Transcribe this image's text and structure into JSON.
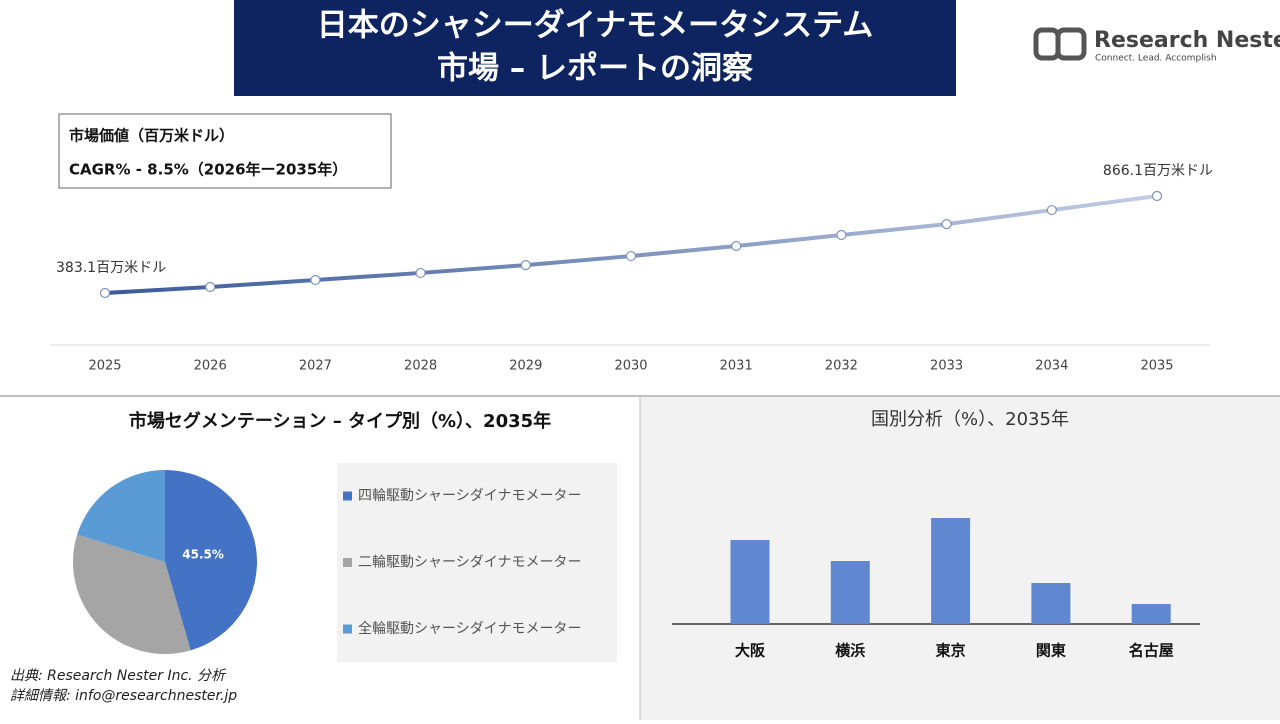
{
  "header": {
    "title_lines": [
      "日本のシャシーダイナモメータシステム",
      "市場 – レポートの洞察"
    ],
    "logo": {
      "name": "Research Nester",
      "tagline": "Connect. Lead. Accomplish"
    }
  },
  "chart_data": [
    {
      "type": "line",
      "annotations": [
        "市場価値（百万米ドル）",
        "CAGR% - 8.5%（2026年ー2035年）"
      ],
      "x": [
        "2025",
        "2026",
        "2027",
        "2028",
        "2029",
        "2030",
        "2031",
        "2032",
        "2033",
        "2034",
        "2035"
      ],
      "values": [
        383.1,
        413,
        448,
        483,
        522,
        567,
        617,
        672,
        726,
        796,
        866.1
      ],
      "value_labels": [
        "383.1百万米ドル",
        null,
        null,
        null,
        null,
        null,
        null,
        null,
        null,
        null,
        "866.1百万米ドル"
      ],
      "color": "#3d5e9e"
    },
    {
      "type": "pie",
      "title": "市場セグメンテーション – タイプ別（%）、2035年",
      "categories": [
        "四輪駆動シャーシダイナモメーター",
        "二輪駆動シャーシダイナモメーター",
        "全輪駆動シャーシダイナモメーター"
      ],
      "values": [
        45.5,
        34.3,
        20.2
      ],
      "value_labels": [
        "45.5%",
        null,
        null
      ],
      "colors": [
        "#4472c4",
        "#a5a5a5",
        "#5b9bd5"
      ]
    },
    {
      "type": "bar",
      "title": "国別分析（%）、2035年",
      "categories": [
        "大阪",
        "横浜",
        "東京",
        "関東",
        "名古屋"
      ],
      "values": [
        84,
        63,
        106,
        41,
        20
      ],
      "color": "#6088d0"
    }
  ],
  "footer": {
    "source": "出典: Research Nester Inc. 分析",
    "contact": "詳細情報: info@researchnester.jp"
  }
}
